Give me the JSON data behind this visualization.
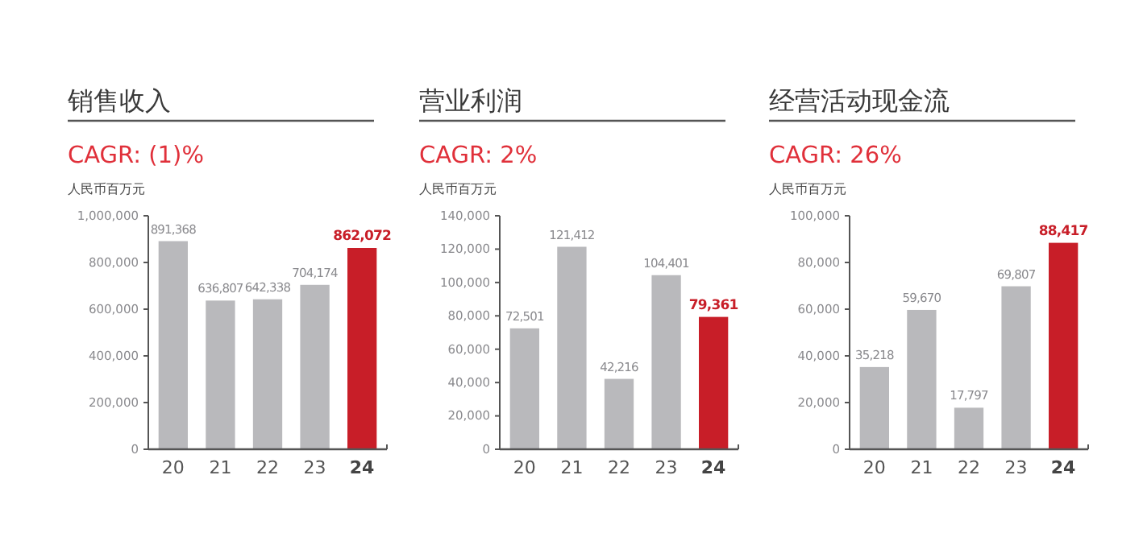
{
  "chart_data": [
    {
      "type": "bar",
      "title": "销售收入",
      "subtitle": "CAGR: (1)%",
      "ylabel": "人民币百万元",
      "categories": [
        "20",
        "21",
        "22",
        "23",
        "24"
      ],
      "values": [
        891368,
        636807,
        642338,
        704174,
        862072
      ],
      "value_labels": [
        "891,368",
        "636,807",
        "642,338",
        "704,174",
        "862,072"
      ],
      "colors": [
        "#b9b9bc",
        "#b9b9bc",
        "#b9b9bc",
        "#b9b9bc",
        "#c81e28"
      ],
      "ylim": [
        0,
        1000000
      ],
      "yticks": [
        {
          "value": 0,
          "label": "0"
        },
        {
          "value": 200000,
          "label": "200,000"
        },
        {
          "value": 400000,
          "label": "400,000"
        },
        {
          "value": 600000,
          "label": "600,000"
        },
        {
          "value": 800000,
          "label": "800,000"
        },
        {
          "value": 1000000,
          "label": "1,000,000"
        }
      ],
      "data_labels": true,
      "grid": false
    },
    {
      "type": "bar",
      "title": "营业利润",
      "subtitle": "CAGR: 2%",
      "ylabel": "人民币百万元",
      "categories": [
        "20",
        "21",
        "22",
        "23",
        "24"
      ],
      "values": [
        72501,
        121412,
        42216,
        104401,
        79361
      ],
      "value_labels": [
        "72,501",
        "121,412",
        "42,216",
        "104,401",
        "79,361"
      ],
      "colors": [
        "#b9b9bc",
        "#b9b9bc",
        "#b9b9bc",
        "#b9b9bc",
        "#c81e28"
      ],
      "ylim": [
        0,
        140000
      ],
      "yticks": [
        {
          "value": 0,
          "label": "0"
        },
        {
          "value": 20000,
          "label": "20,000"
        },
        {
          "value": 40000,
          "label": "40,000"
        },
        {
          "value": 60000,
          "label": "60,000"
        },
        {
          "value": 80000,
          "label": "80,000"
        },
        {
          "value": 100000,
          "label": "100,000"
        },
        {
          "value": 120000,
          "label": "120,000"
        },
        {
          "value": 140000,
          "label": "140,000"
        }
      ],
      "data_labels": true,
      "grid": false
    },
    {
      "type": "bar",
      "title": "经营活动现金流",
      "subtitle": "CAGR: 26%",
      "ylabel": "人民币百万元",
      "categories": [
        "20",
        "21",
        "22",
        "23",
        "24"
      ],
      "values": [
        35218,
        59670,
        17797,
        69807,
        88417
      ],
      "value_labels": [
        "35,218",
        "59,670",
        "17,797",
        "69,807",
        "88,417"
      ],
      "colors": [
        "#b9b9bc",
        "#b9b9bc",
        "#b9b9bc",
        "#b9b9bc",
        "#c81e28"
      ],
      "ylim": [
        0,
        100000
      ],
      "yticks": [
        {
          "value": 0,
          "label": "0"
        },
        {
          "value": 20000,
          "label": "20,000"
        },
        {
          "value": 40000,
          "label": "40,000"
        },
        {
          "value": 60000,
          "label": "60,000"
        },
        {
          "value": 80000,
          "label": "80,000"
        },
        {
          "value": 100000,
          "label": "100,000"
        }
      ],
      "data_labels": true,
      "grid": false
    }
  ]
}
